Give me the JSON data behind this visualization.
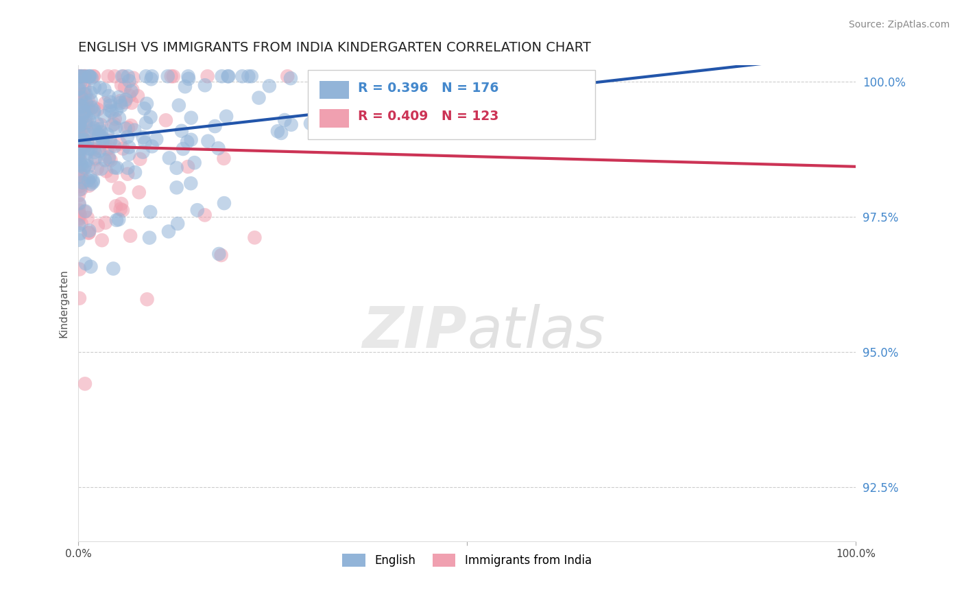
{
  "title": "ENGLISH VS IMMIGRANTS FROM INDIA KINDERGARTEN CORRELATION CHART",
  "source_text": "Source: ZipAtlas.com",
  "yaxis_label": "Kindergarten",
  "x_min": 0.0,
  "x_max": 1.0,
  "y_min": 0.915,
  "y_max": 1.003,
  "yticks": [
    0.925,
    0.95,
    0.975,
    1.0
  ],
  "ytick_labels": [
    "92.5%",
    "95.0%",
    "97.5%",
    "100.0%"
  ],
  "english_R": 0.396,
  "english_N": 176,
  "india_R": 0.409,
  "india_N": 123,
  "english_color": "#92B4D8",
  "india_color": "#F0A0B0",
  "english_line_color": "#2255AA",
  "india_line_color": "#CC3355",
  "legend_label_english": "English",
  "legend_label_india": "Immigrants from India",
  "watermark_zip": "ZIP",
  "watermark_atlas": "atlas",
  "background_color": "#FFFFFF",
  "title_fontsize": 14,
  "source_fontsize": 10,
  "axis_label_color": "#4488CC",
  "grid_color": "#CCCCCC",
  "grid_linestyle": "--"
}
